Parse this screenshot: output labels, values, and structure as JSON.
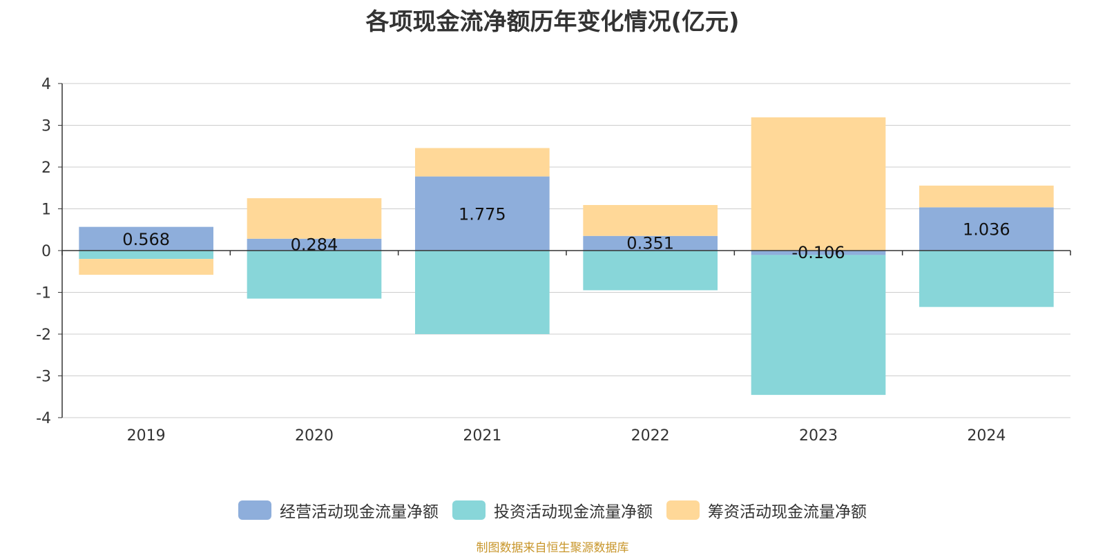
{
  "title": "各项现金流净额历年变化情况(亿元)",
  "source": "制图数据来自恒生聚源数据库",
  "colors": {
    "operating": "#8eaedb",
    "investing": "#88d6d9",
    "financing": "#ffd898",
    "grid": "#cccccc",
    "axis": "#333333",
    "text": "#333333"
  },
  "chart_data": {
    "type": "bar",
    "stacked": true,
    "categories": [
      "2019",
      "2020",
      "2021",
      "2022",
      "2023",
      "2024"
    ],
    "ylim": [
      -4,
      4
    ],
    "yticks": [
      "4",
      "3",
      "2",
      "1",
      "0",
      "-1",
      "-2",
      "-3",
      "-4"
    ],
    "grid": true,
    "legend_position": "bottom",
    "series": [
      {
        "name": "经营活动现金流量净额",
        "values": [
          0.568,
          0.284,
          1.775,
          0.351,
          -0.106,
          1.036
        ],
        "labels": [
          "0.568",
          "0.284",
          "1.775",
          "0.351",
          "-0.106",
          "1.036"
        ]
      },
      {
        "name": "投资活动现金流量净额",
        "values": [
          -0.2,
          -1.15,
          -2.0,
          -0.95,
          -3.35,
          -1.35
        ]
      },
      {
        "name": "筹资活动现金流量净额",
        "values": [
          -0.38,
          0.97,
          0.68,
          0.74,
          3.19,
          0.52
        ]
      }
    ]
  }
}
